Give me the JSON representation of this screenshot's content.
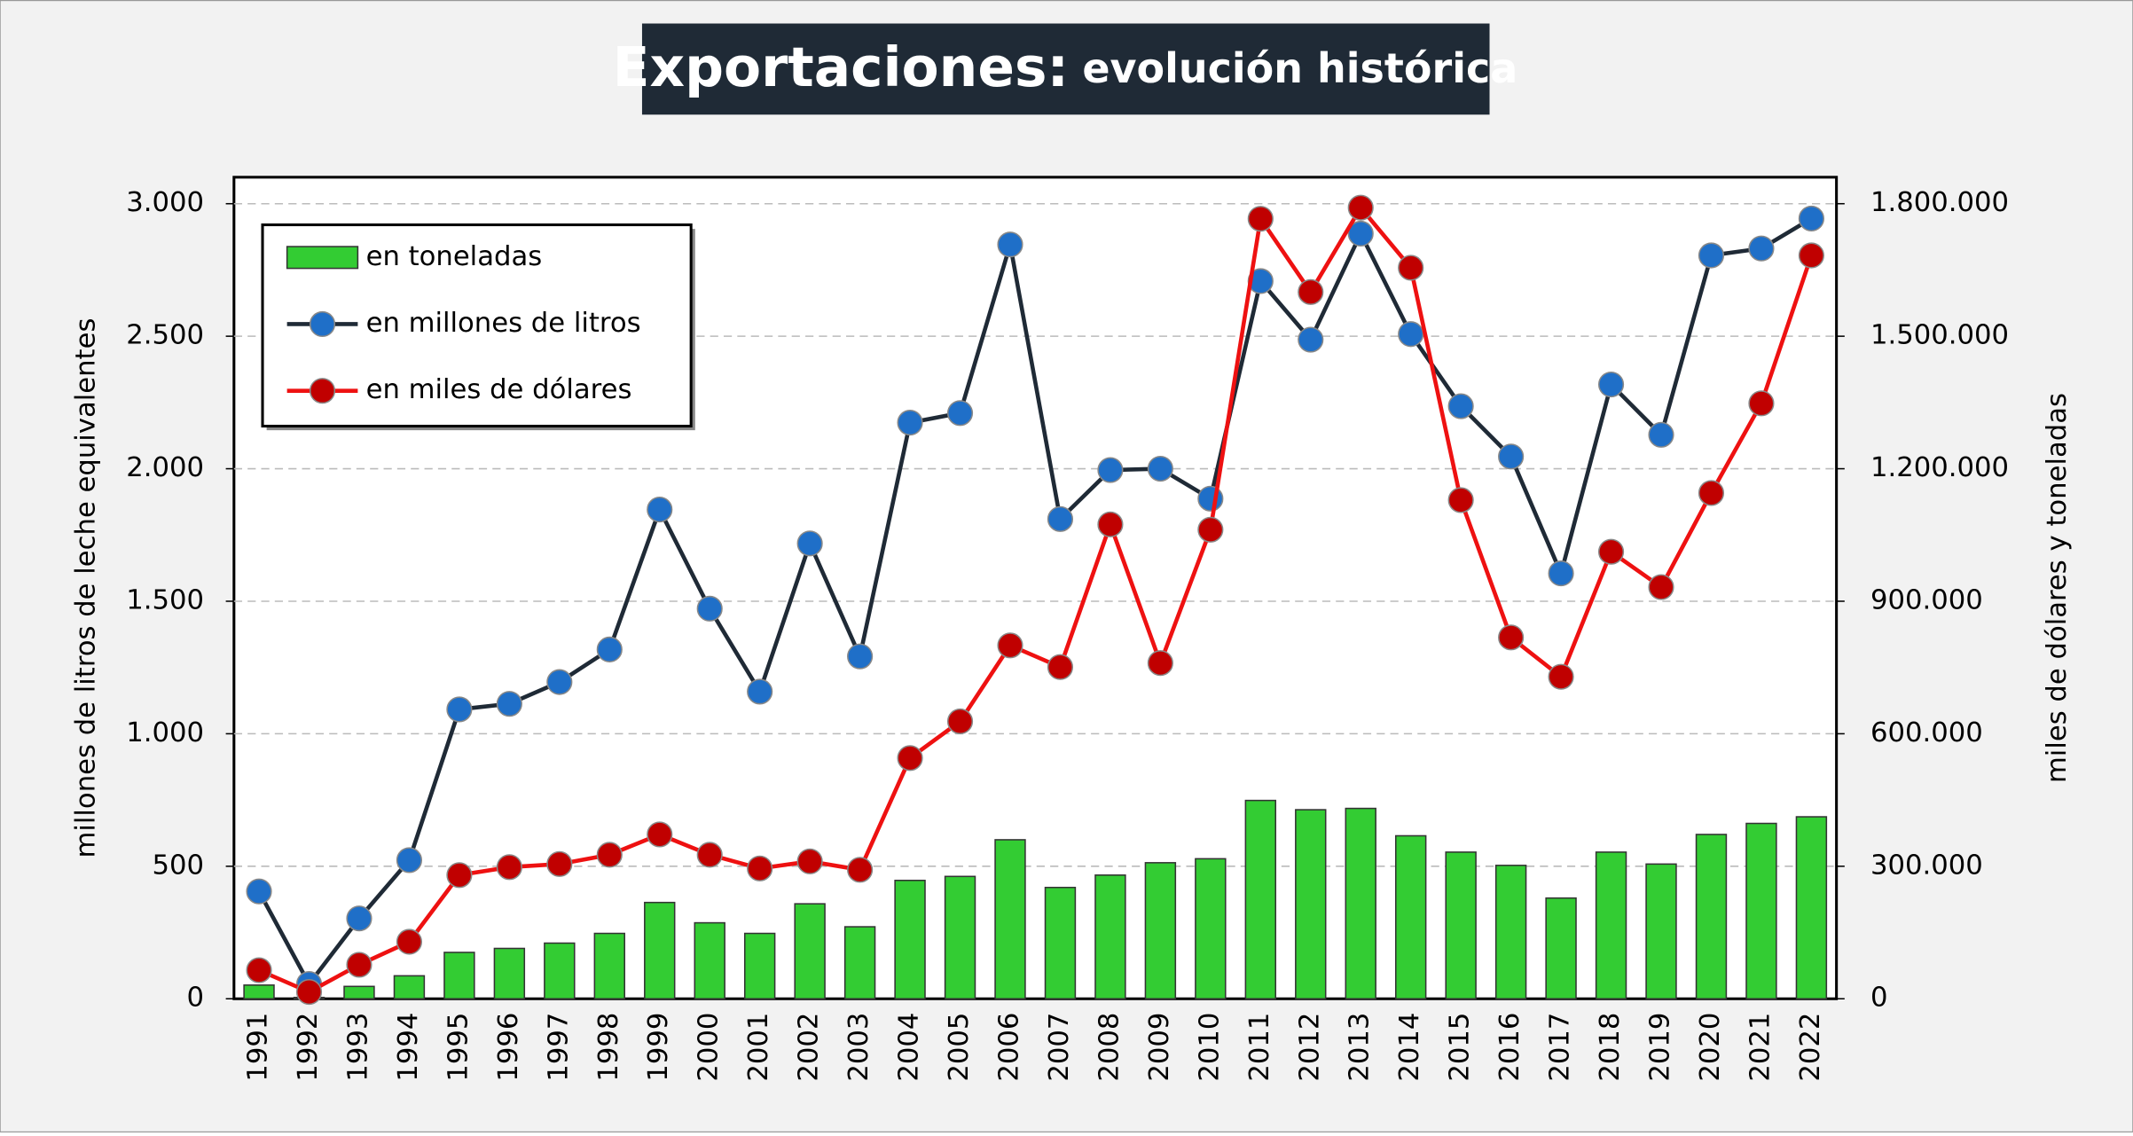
{
  "chart_data": {
    "type": "combo",
    "title": "Exportaciones:",
    "subtitle": "evolución histórica",
    "ylabel": "millones de litros de leche equivalentes",
    "y2label": "miles de dólares y toneladas",
    "categories": [
      "1991",
      "1992",
      "1993",
      "1994",
      "1995",
      "1996",
      "1997",
      "1998",
      "1999",
      "2000",
      "2001",
      "2002",
      "2003",
      "2004",
      "2005",
      "2006",
      "2007",
      "2008",
      "2009",
      "2010",
      "2011",
      "2012",
      "2013",
      "2014",
      "2015",
      "2016",
      "2017",
      "2018",
      "2019",
      "2020",
      "2021",
      "2022"
    ],
    "series": [
      {
        "name": "en toneladas",
        "type": "bar",
        "axis": "y2",
        "color": "#33cc33",
        "values": [
          31000,
          3000,
          28000,
          52000,
          105000,
          114000,
          126000,
          148000,
          218000,
          172000,
          148000,
          215000,
          163000,
          268000,
          277000,
          360000,
          252000,
          280000,
          308000,
          317000,
          449000,
          428000,
          431000,
          369000,
          332000,
          302000,
          228000,
          332000,
          305000,
          372000,
          397000,
          412000
        ]
      },
      {
        "name": "en millones de litros",
        "type": "line",
        "axis": "y",
        "color": "#1f2a36",
        "marker_color": "#1f6fc8",
        "values": [
          405,
          56,
          303,
          523,
          1092,
          1113,
          1195,
          1318,
          1846,
          1472,
          1159,
          1718,
          1292,
          2174,
          2210,
          2846,
          1810,
          1995,
          2000,
          1887,
          2708,
          2487,
          2887,
          2508,
          2236,
          2046,
          1605,
          2318,
          2128,
          2805,
          2831,
          2944
        ]
      },
      {
        "name": "en miles de dólares",
        "type": "line",
        "axis": "y2",
        "color": "#ee1111",
        "marker_color": "#c00000",
        "values": [
          64600,
          15400,
          77000,
          129000,
          280000,
          298000,
          305000,
          326000,
          372000,
          326000,
          295000,
          311000,
          292000,
          545000,
          628000,
          800000,
          751000,
          1074000,
          760000,
          1062000,
          1766000,
          1600000,
          1791000,
          1655000,
          1129000,
          818000,
          729000,
          1012000,
          932000,
          1145000,
          1348000,
          1683000
        ]
      }
    ],
    "ylim": [
      0,
      3100
    ],
    "yticks": [
      0,
      {
        "value": 500,
        "label": "500"
      },
      {
        "value": 1000,
        "label": "1.000"
      },
      {
        "value": 1500,
        "label": "1.500"
      },
      {
        "value": 2000,
        "label": "2.000"
      },
      {
        "value": 2500,
        "label": "2.500"
      },
      {
        "value": 3000,
        "label": "3.000"
      }
    ],
    "y2lim": [
      0,
      1860000
    ],
    "y2ticks": [
      0,
      {
        "value": 300000,
        "label": "300.000"
      },
      {
        "value": 600000,
        "label": "600.000"
      },
      {
        "value": 900000,
        "label": "900.000"
      },
      {
        "value": 1200000,
        "label": "1.200.000"
      },
      {
        "value": 1500000,
        "label": "1.500.000"
      },
      {
        "value": 1800000,
        "label": "1.800.000"
      }
    ],
    "grid": true,
    "legend": "upper left"
  }
}
